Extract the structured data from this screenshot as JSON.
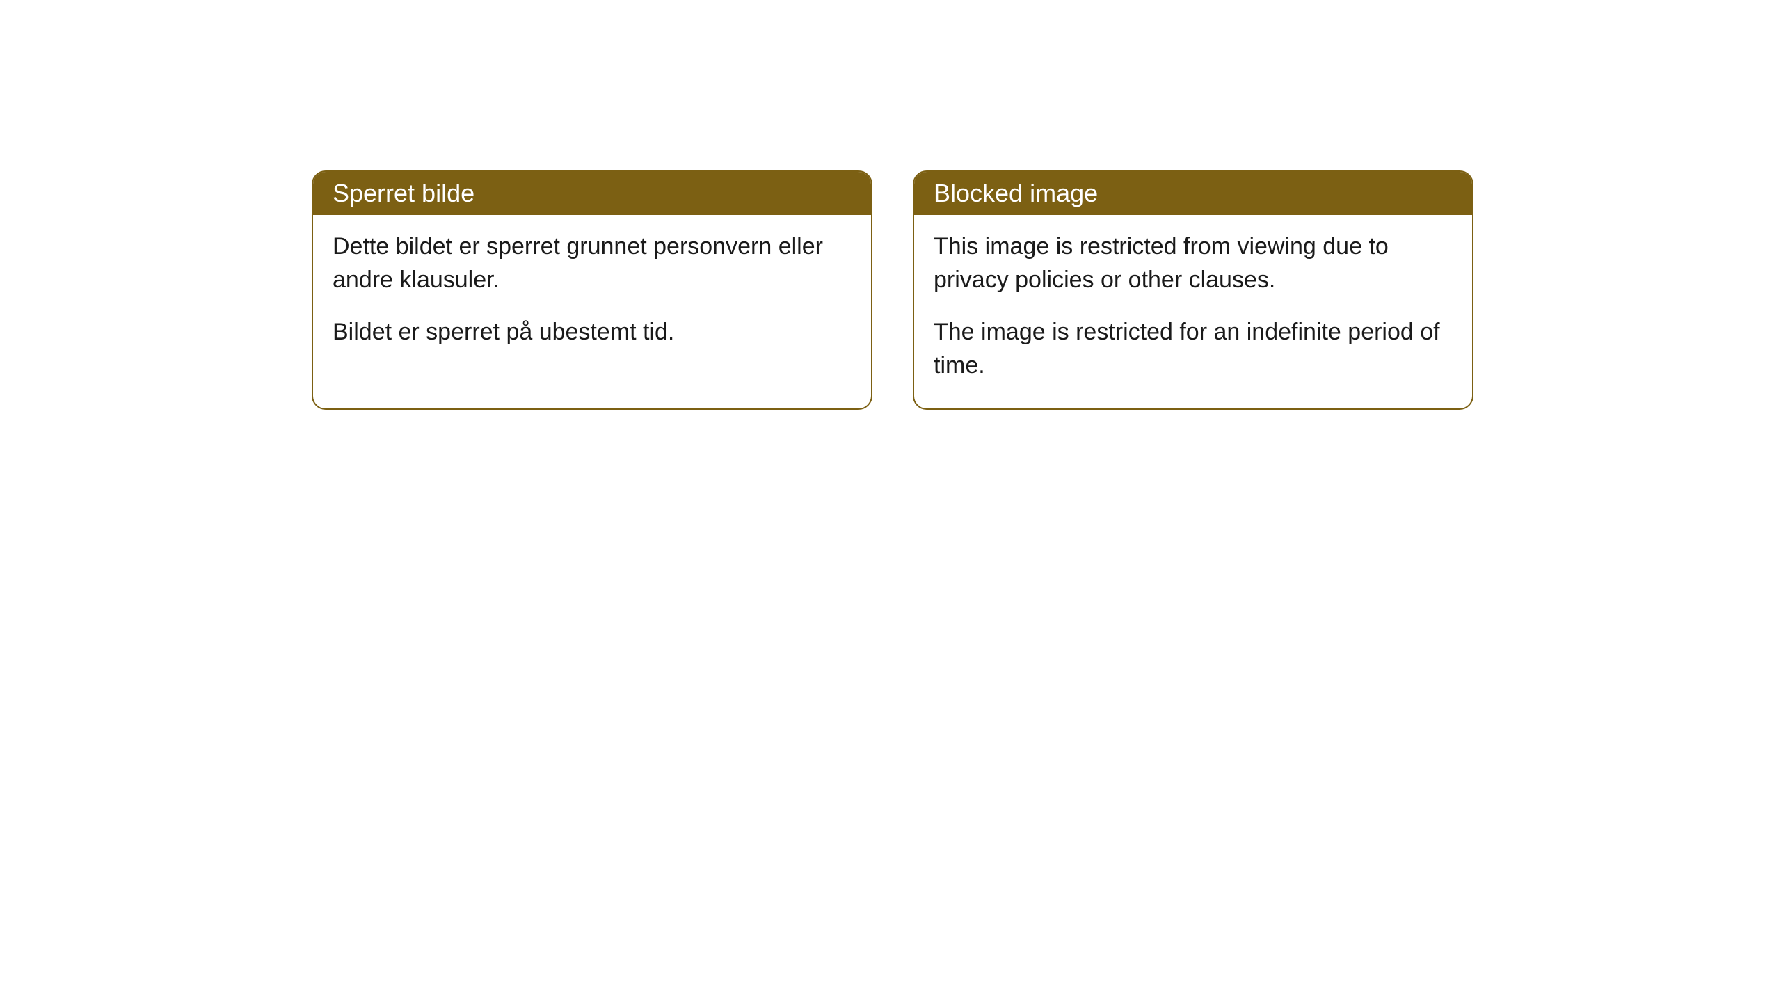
{
  "cards": [
    {
      "title": "Sperret bilde",
      "paragraph1": "Dette bildet er sperret grunnet personvern eller andre klausuler.",
      "paragraph2": "Bildet er sperret på ubestemt tid."
    },
    {
      "title": "Blocked image",
      "paragraph1": "This image is restricted from viewing due to privacy policies or other clauses.",
      "paragraph2": "The image is restricted for an indefinite period of time."
    }
  ],
  "styling": {
    "header_background": "#7c6013",
    "header_text_color": "#ffffff",
    "card_border_color": "#7c6013",
    "card_background": "#ffffff",
    "body_text_color": "#1a1a1a",
    "border_radius": 20,
    "title_fontsize": 36,
    "body_fontsize": 34
  }
}
